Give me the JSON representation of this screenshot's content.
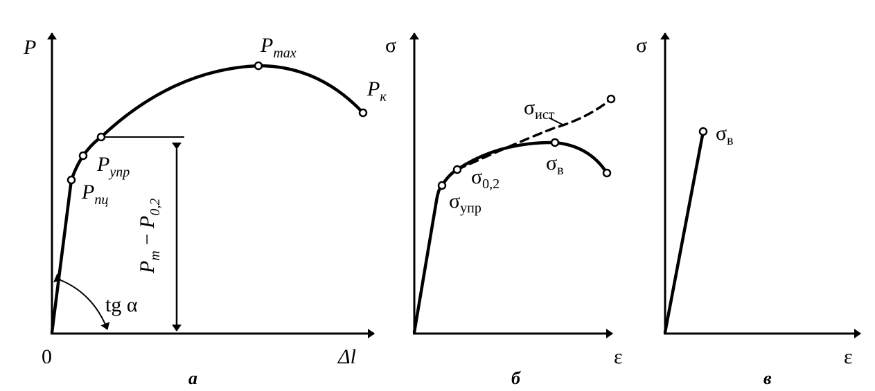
{
  "panels": [
    {
      "caption": "a",
      "y_axis": "P",
      "x_axis": "Δl",
      "origin": "0",
      "labels": [
        {
          "main": "P",
          "sub": "max"
        },
        {
          "main": "P",
          "sub": "к"
        },
        {
          "main": "P",
          "sub": "упр"
        },
        {
          "main": "P",
          "sub": "пц"
        }
      ],
      "dimension_label": {
        "a": {
          "main": "P",
          "sub": "т"
        },
        "sep": "−",
        "b": {
          "main": "P",
          "sub": "0,2"
        }
      },
      "angle_label": "tg α"
    },
    {
      "caption": "б",
      "y_axis": "σ",
      "x_axis": "ε",
      "labels": [
        {
          "main": "σ",
          "sub": "ист"
        },
        {
          "main": "σ",
          "sub": "0,2"
        },
        {
          "main": "σ",
          "sub": "упр"
        },
        {
          "main": "σ",
          "sub": "в"
        }
      ]
    },
    {
      "caption": "в",
      "y_axis": "σ",
      "x_axis": "ε",
      "labels": [
        {
          "main": "σ",
          "sub": "в"
        }
      ]
    }
  ]
}
